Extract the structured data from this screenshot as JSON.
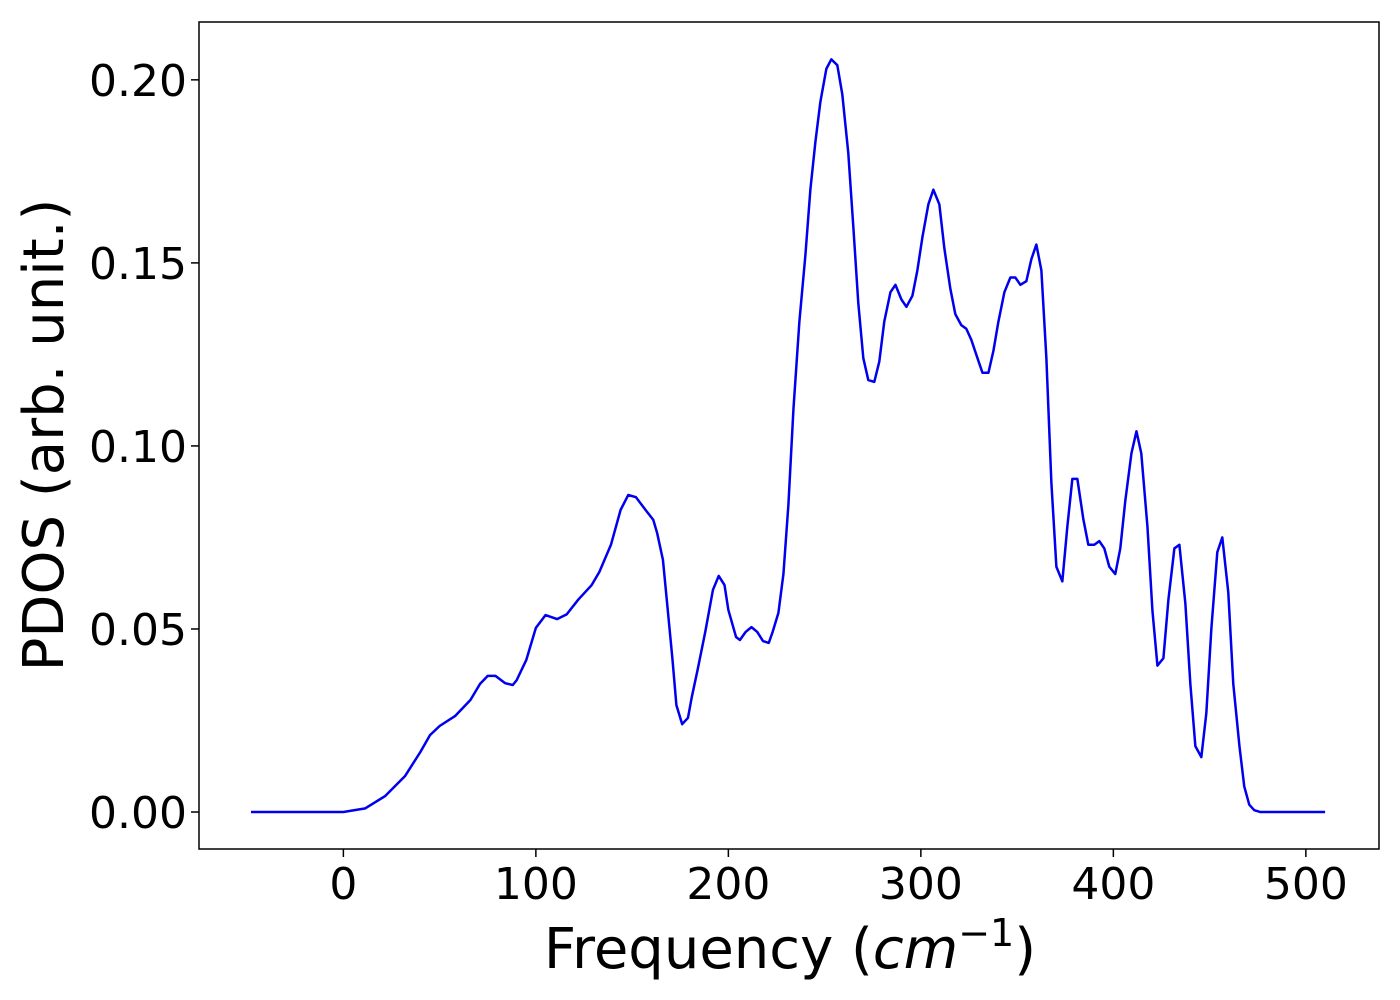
{
  "chart_data": {
    "type": "line",
    "xlabel": [
      "Frequency (",
      "cm",
      "−1",
      ")"
    ],
    "ylabel": "PDOS (arb. unit.)",
    "xlim": [
      -75,
      538
    ],
    "ylim": [
      -0.0101,
      0.2158
    ],
    "xticks": [
      0,
      100,
      200,
      300,
      400,
      500
    ],
    "yticks": [
      {
        "value": 0,
        "label": "0.00"
      },
      {
        "value": 0.05,
        "label": "0.05"
      },
      {
        "value": 0.1,
        "label": "0.10"
      },
      {
        "value": 0.15,
        "label": "0.15"
      },
      {
        "value": 0.2,
        "label": "0.20"
      }
    ],
    "grid": false,
    "x": [
      -48,
      0,
      11.4,
      21.8,
      32,
      40,
      45,
      50,
      58,
      66,
      71,
      75,
      79,
      84,
      88,
      90,
      95,
      100,
      105,
      111,
      116,
      122,
      129,
      133,
      139,
      144,
      148,
      152,
      157,
      161,
      163,
      166,
      168,
      171,
      173,
      176,
      179,
      181,
      184,
      188,
      192,
      195,
      198,
      200,
      204,
      206,
      209,
      212,
      215,
      218,
      221,
      223,
      226,
      228.6,
      231.2,
      233.8,
      236.9,
      240,
      242.6,
      245.2,
      247.8,
      250.9,
      253.5,
      256.6,
      259.2,
      262.3,
      264.9,
      267.5,
      270.1,
      272.7,
      275.8,
      278.4,
      281,
      284.2,
      286.8,
      289.9,
      292.5,
      295.6,
      298.2,
      300.8,
      303.9,
      306.5,
      309.6,
      312.2,
      315.3,
      317.9,
      321,
      323.6,
      326.2,
      329.4,
      332,
      335.1,
      337.7,
      340.3,
      343.4,
      346.5,
      349.1,
      351.7,
      354.8,
      357.4,
      360,
      362.6,
      365.2,
      367.8,
      370.4,
      373.5,
      376.1,
      378.7,
      381.3,
      384.4,
      387,
      390.1,
      392.7,
      395.3,
      397.9,
      401,
      403.6,
      406.2,
      409.4,
      412,
      414.5,
      417.7,
      420.3,
      422.9,
      426,
      428.6,
      431.7,
      434.3,
      437.4,
      440,
      442.6,
      445.7,
      448.3,
      450.9,
      454,
      456.6,
      459.7,
      462.3,
      465.5,
      468,
      470.6,
      473.2,
      476.4,
      510
    ],
    "series": [
      {
        "name": "PDOS",
        "color": "#0000ee",
        "values": [
          0,
          0,
          0.001,
          0.0044,
          0.0098,
          0.0164,
          0.021,
          0.0235,
          0.0262,
          0.0306,
          0.035,
          0.0372,
          0.0372,
          0.0352,
          0.0347,
          0.036,
          0.0415,
          0.0503,
          0.0538,
          0.0527,
          0.054,
          0.058,
          0.062,
          0.0656,
          0.073,
          0.0825,
          0.0866,
          0.086,
          0.0825,
          0.0798,
          0.0762,
          0.0689,
          0.058,
          0.0415,
          0.0292,
          0.024,
          0.0257,
          0.0314,
          0.0388,
          0.0492,
          0.0607,
          0.0645,
          0.062,
          0.0552,
          0.0478,
          0.047,
          0.0492,
          0.0505,
          0.0492,
          0.0467,
          0.0462,
          0.0492,
          0.0544,
          0.065,
          0.084,
          0.11,
          0.134,
          0.152,
          0.17,
          0.183,
          0.194,
          0.203,
          0.2056,
          0.204,
          0.196,
          0.18,
          0.16,
          0.139,
          0.124,
          0.118,
          0.1175,
          0.123,
          0.134,
          0.142,
          0.144,
          0.14,
          0.138,
          0.141,
          0.148,
          0.157,
          0.166,
          0.17,
          0.166,
          0.154,
          0.143,
          0.136,
          0.133,
          0.132,
          0.129,
          0.124,
          0.12,
          0.12,
          0.126,
          0.134,
          0.142,
          0.146,
          0.146,
          0.144,
          0.145,
          0.151,
          0.155,
          0.148,
          0.124,
          0.09,
          0.067,
          0.063,
          0.078,
          0.091,
          0.091,
          0.08,
          0.073,
          0.073,
          0.074,
          0.072,
          0.067,
          0.065,
          0.072,
          0.085,
          0.098,
          0.104,
          0.098,
          0.078,
          0.055,
          0.04,
          0.042,
          0.058,
          0.072,
          0.073,
          0.057,
          0.035,
          0.018,
          0.015,
          0.027,
          0.05,
          0.071,
          0.075,
          0.06,
          0.035,
          0.018,
          0.007,
          0.002,
          0.0005,
          0,
          0
        ]
      }
    ]
  }
}
